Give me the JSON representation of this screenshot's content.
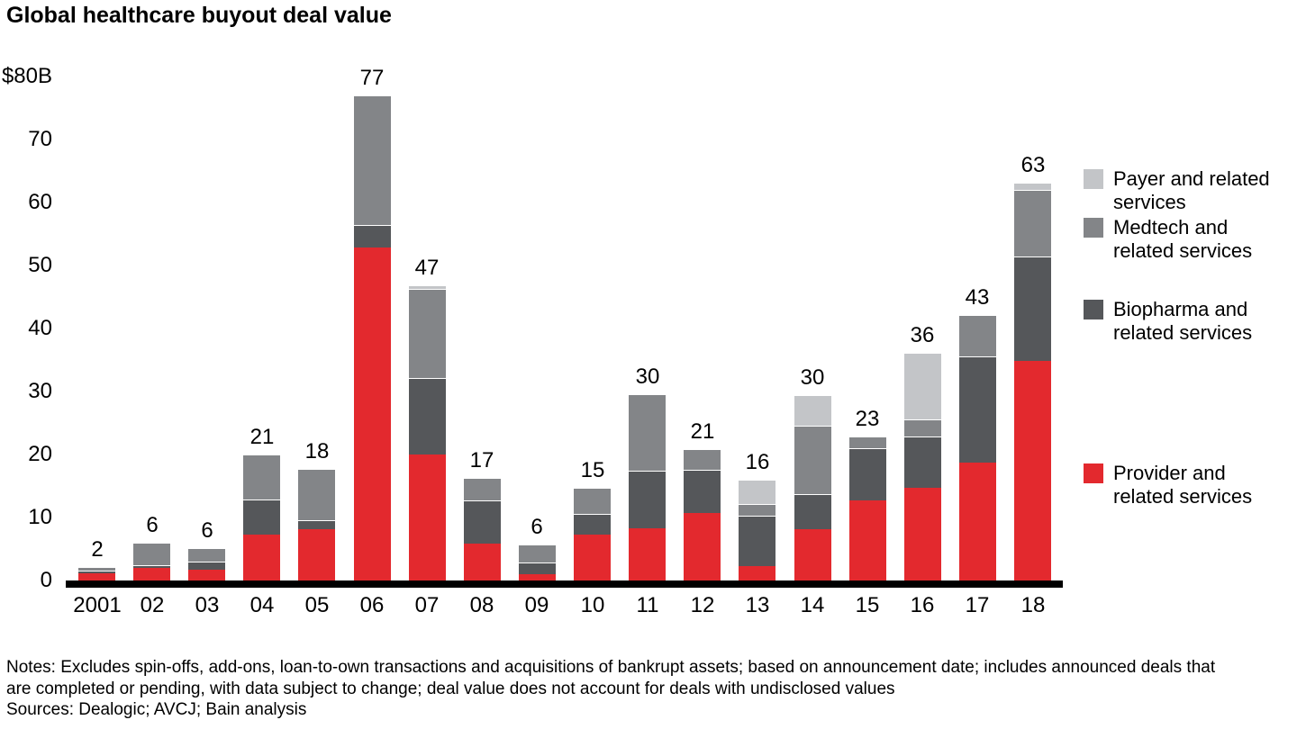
{
  "title": "Global healthcare buyout deal value",
  "y_axis": {
    "ticks": [
      {
        "value": 80,
        "label": "$80B"
      },
      {
        "value": 70,
        "label": "70"
      },
      {
        "value": 60,
        "label": "60"
      },
      {
        "value": 50,
        "label": "50"
      },
      {
        "value": 40,
        "label": "40"
      },
      {
        "value": 30,
        "label": "30"
      },
      {
        "value": 20,
        "label": "20"
      },
      {
        "value": 10,
        "label": "10"
      },
      {
        "value": 0,
        "label": "0"
      }
    ]
  },
  "chart_data": {
    "type": "bar",
    "stacked": true,
    "title": "Global healthcare buyout deal value",
    "ylabel": "$80B",
    "ylim": [
      0,
      80
    ],
    "grid": false,
    "legend_position": "right",
    "categories": [
      "2001",
      "02",
      "03",
      "04",
      "05",
      "06",
      "07",
      "08",
      "09",
      "10",
      "11",
      "12",
      "13",
      "14",
      "15",
      "16",
      "17",
      "18"
    ],
    "series": [
      {
        "name": "Provider and related services",
        "color": "#e3292e",
        "values": [
          1.1,
          2.0,
          1.7,
          7.3,
          8.2,
          52.9,
          20.0,
          5.9,
          1.0,
          7.3,
          8.3,
          10.7,
          2.3,
          8.1,
          12.7,
          14.7,
          18.7,
          34.8
        ]
      },
      {
        "name": "Biopharma and related services",
        "color": "#55575a",
        "values": [
          0.4,
          0.4,
          1.3,
          5.6,
          1.4,
          3.5,
          12.2,
          6.9,
          1.8,
          3.3,
          9.1,
          6.8,
          8.0,
          5.6,
          8.3,
          8.1,
          16.8,
          16.5
        ]
      },
      {
        "name": "Medtech and related services",
        "color": "#838588",
        "values": [
          0.5,
          3.6,
          2.2,
          7.1,
          8.2,
          20.6,
          14.2,
          3.5,
          2.8,
          4.2,
          12.2,
          3.3,
          1.8,
          10.8,
          1.8,
          2.7,
          6.6,
          10.5
        ]
      },
      {
        "name": "Payer and related services",
        "color": "#c3c5c8",
        "values": [
          0,
          0,
          0,
          0,
          0,
          0,
          0.5,
          0,
          0,
          0,
          0,
          0,
          3.9,
          4.9,
          0,
          10.6,
          0,
          1.1
        ]
      }
    ],
    "totals_labels": [
      "2",
      "6",
      "6",
      "21",
      "18",
      "77",
      "47",
      "17",
      "6",
      "15",
      "30",
      "21",
      "16",
      "30",
      "23",
      "36",
      "43",
      "63"
    ]
  },
  "legend": [
    {
      "color": "#c3c5c8",
      "lines": [
        "Payer and related",
        "services"
      ]
    },
    {
      "color": "#838588",
      "lines": [
        "Medtech and",
        "related services"
      ]
    },
    {
      "color": "#55575a",
      "lines": [
        "Biopharma and",
        "related services"
      ]
    },
    {
      "color": "#e3292e",
      "lines": [
        "Provider and",
        "related services"
      ]
    }
  ],
  "notes": {
    "line1": "Notes: Excludes spin-offs, add-ons, loan-to-own transactions and acquisitions of bankrupt assets; based on announcement date; includes announced deals that",
    "line2": "are completed or pending, with data subject to change; deal value does not account for deals with undisclosed values",
    "line3": "Sources: Dealogic; AVCJ; Bain analysis"
  }
}
